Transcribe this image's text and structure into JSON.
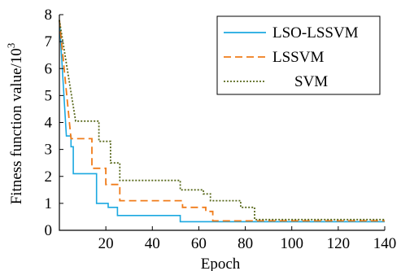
{
  "chart_data": {
    "type": "line",
    "xlabel": "Epoch",
    "ylabel_main": "Fitness function value/10",
    "ylabel_exp": "3",
    "xlim": [
      0,
      140
    ],
    "ylim": [
      0,
      8
    ],
    "xticks": [
      "20",
      "40",
      "60",
      "80",
      "100",
      "120",
      "140"
    ],
    "yticks": [
      "0",
      "1",
      "2",
      "3",
      "4",
      "5",
      "6",
      "7",
      "8"
    ],
    "legend_position": "top-right",
    "series": [
      {
        "name": "LSO-LSSVM",
        "color": "#1ba8e0",
        "dash": "solid",
        "x": [
          0,
          3,
          3,
          5,
          5,
          6,
          6,
          16,
          16,
          21,
          21,
          25,
          25,
          52,
          52,
          140
        ],
        "y": [
          7.8,
          3.5,
          3.5,
          3.5,
          3.1,
          3.1,
          2.1,
          2.1,
          1.0,
          1.0,
          0.85,
          0.85,
          0.55,
          0.55,
          0.32,
          0.32
        ]
      },
      {
        "name": "LSSVM",
        "color": "#f07c1a",
        "dash": "dashed",
        "x": [
          0,
          5,
          5,
          14,
          14,
          20,
          20,
          26,
          26,
          53,
          53,
          63,
          63,
          66,
          66,
          140
        ],
        "y": [
          7.8,
          3.4,
          3.4,
          3.4,
          2.3,
          2.3,
          1.7,
          1.7,
          1.1,
          1.1,
          0.85,
          0.85,
          0.7,
          0.7,
          0.35,
          0.35
        ]
      },
      {
        "name": "SVM",
        "color": "#5a6a1e",
        "dash": "dotted",
        "x": [
          0,
          7,
          7,
          17,
          17,
          22,
          22,
          26,
          26,
          52,
          52,
          62,
          62,
          65,
          65,
          78,
          78,
          84,
          84,
          140
        ],
        "y": [
          7.8,
          4.05,
          4.05,
          4.05,
          3.3,
          3.3,
          2.5,
          2.5,
          1.85,
          1.85,
          1.5,
          1.5,
          1.35,
          1.35,
          1.1,
          1.1,
          0.85,
          0.85,
          0.4,
          0.4
        ]
      }
    ]
  }
}
